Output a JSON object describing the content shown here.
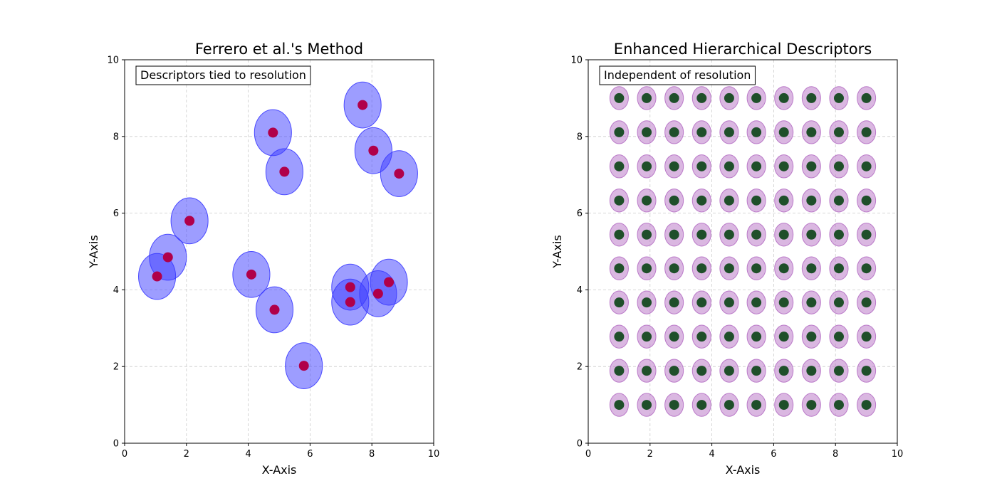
{
  "chart_data": [
    {
      "type": "scatter",
      "title": "Ferrero et al.'s Method",
      "xlabel": "X-Axis",
      "ylabel": "Y-Axis",
      "xlim": [
        0,
        10
      ],
      "ylim": [
        0,
        10
      ],
      "xticks": [
        "0",
        "2",
        "4",
        "6",
        "8",
        "10"
      ],
      "yticks": [
        "0",
        "2",
        "4",
        "6",
        "8",
        "10"
      ],
      "grid": true,
      "annotation": "Descriptors tied to resolution",
      "descriptor_radius": 0.6,
      "point_color": "#b0004a",
      "ellipse_color": "#3b3bff",
      "points": [
        {
          "x": 1.05,
          "y": 4.35
        },
        {
          "x": 1.4,
          "y": 4.85
        },
        {
          "x": 2.1,
          "y": 5.8
        },
        {
          "x": 4.1,
          "y": 4.4
        },
        {
          "x": 4.85,
          "y": 3.48
        },
        {
          "x": 5.8,
          "y": 2.02
        },
        {
          "x": 4.8,
          "y": 8.1
        },
        {
          "x": 5.17,
          "y": 7.08
        },
        {
          "x": 7.7,
          "y": 8.82
        },
        {
          "x": 8.05,
          "y": 7.63
        },
        {
          "x": 8.88,
          "y": 7.03
        },
        {
          "x": 7.3,
          "y": 4.07
        },
        {
          "x": 7.3,
          "y": 3.68
        },
        {
          "x": 8.2,
          "y": 3.9
        },
        {
          "x": 8.55,
          "y": 4.2
        }
      ]
    },
    {
      "type": "scatter",
      "title": "Enhanced Hierarchical Descriptors",
      "xlabel": "X-Axis",
      "ylabel": "Y-Axis",
      "xlim": [
        0,
        10
      ],
      "ylim": [
        0,
        10
      ],
      "xticks": [
        "0",
        "2",
        "4",
        "6",
        "8",
        "10"
      ],
      "yticks": [
        "0",
        "2",
        "4",
        "6",
        "8",
        "10"
      ],
      "grid": true,
      "annotation": "Independent of resolution",
      "descriptor_radius": 0.3,
      "point_color": "#1f4f2a",
      "ellipse_color": "#b56fc4",
      "grid_points": {
        "x": [
          1.0,
          1.89,
          2.78,
          3.67,
          4.56,
          5.44,
          6.33,
          7.22,
          8.11,
          9.0
        ],
        "y": [
          1.0,
          1.89,
          2.78,
          3.67,
          4.56,
          5.44,
          6.33,
          7.22,
          8.11,
          9.0
        ]
      }
    }
  ]
}
